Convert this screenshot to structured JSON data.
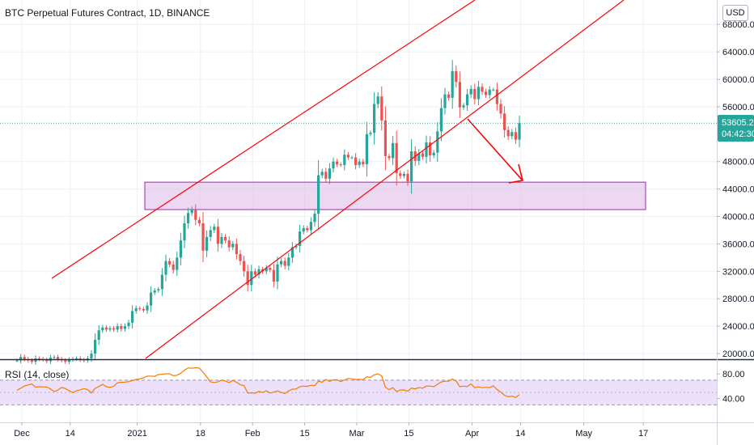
{
  "title": "BTC Perpetual Futures Contract, 1D, BINANCE",
  "currency_button": "USD",
  "price_label": "53605.2",
  "countdown_label": "04:42:30",
  "colors": {
    "up": "#26a69a",
    "down": "#ef5350",
    "channel": "#ff0000",
    "zone_fill": "#e1bee7",
    "zone_border": "#9c27b0",
    "rsi_line": "#f57c00",
    "rsi_band": "#ede0fb",
    "last_price_bg": "#26a69a",
    "grid": "#eef0f4"
  },
  "chart_data": {
    "type": "candlestick",
    "title": "BTC Perpetual Futures Contract, 1D, BINANCE",
    "x_tick_labels": [
      "Dec",
      "14",
      "2021",
      "18",
      "Feb",
      "15",
      "Mar",
      "15",
      "Apr",
      "14",
      "May",
      "17"
    ],
    "x_tick_dates": [
      "2020-12-01",
      "2020-12-14",
      "2021-01-01",
      "2021-01-18",
      "2021-02-01",
      "2021-02-15",
      "2021-03-01",
      "2021-03-15",
      "2021-04-01",
      "2021-04-14",
      "2021-05-01",
      "2021-05-17"
    ],
    "y_tick_labels": [
      "20000.0",
      "24000.0",
      "28000.0",
      "32000.0",
      "36000.0",
      "40000.0",
      "44000.0",
      "48000.0",
      "56000.0",
      "60000.0",
      "64000.0",
      "68000.0"
    ],
    "ylim": [
      19000,
      69000
    ],
    "grid": true,
    "last_price": 53605.2,
    "last_price_countdown": "04:42:30",
    "candles_close": [
      19000,
      19500,
      19200,
      19000,
      18800,
      19300,
      19200,
      19100,
      18900,
      19400,
      19500,
      19200,
      19000,
      18800,
      19100,
      19200,
      19300,
      19100,
      19000,
      19300,
      20000,
      22000,
      23400,
      23800,
      23500,
      23700,
      23500,
      24000,
      23600,
      24000,
      24500,
      26200,
      26600,
      26500,
      26300,
      27000,
      28900,
      29200,
      29400,
      31500,
      33500,
      33000,
      32200,
      34000,
      36500,
      39000,
      40500,
      41000,
      39500,
      39000,
      35000,
      37000,
      38000,
      38500,
      36000,
      37000,
      36500,
      35500,
      36000,
      34500,
      33500,
      32000,
      30000,
      32000,
      31500,
      32300,
      32000,
      32500,
      32200,
      30500,
      33000,
      33500,
      32800,
      34000,
      35500,
      35700,
      37800,
      38300,
      38000,
      39200,
      40400,
      46000,
      46500,
      45500,
      47000,
      48000,
      47600,
      47500,
      49000,
      48600,
      48600,
      47500,
      48000,
      47600,
      52000,
      52200,
      56400,
      57500,
      54000,
      48800,
      48500,
      50700,
      46300,
      45900,
      46200,
      45100,
      49500,
      48100,
      49200,
      48700,
      50800,
      48900,
      49300,
      52400,
      55800,
      57800,
      57300,
      61200,
      59600,
      55900,
      56200,
      57800,
      58600,
      57100,
      58900,
      58200,
      57700,
      58500,
      58500,
      56400,
      55000,
      52600,
      51700,
      52300,
      51200,
      53605
    ]
  },
  "rsi": {
    "label": "RSI (14, close)",
    "y_tick_labels": [
      "80.00",
      "40.00"
    ],
    "ylim": [
      20,
      95
    ],
    "bands": [
      70,
      30
    ],
    "values": [
      53.69,
      56.83,
      60.68,
      62.2,
      63.91,
      58.49,
      59.42,
      58.97,
      58.78,
      55.79,
      51.22,
      54.05,
      58.17,
      56.32,
      53.01,
      49.66,
      52.81,
      54.15,
      56.31,
      54.84,
      49.04,
      56.65,
      59.71,
      63.1,
      59.43,
      58.29,
      60.05,
      65.65,
      66.3,
      66.77,
      67.56,
      69.26,
      71.25,
      72.18,
      73.77,
      76.54,
      76.6,
      76.04,
      79.24,
      79.46,
      80.32,
      80.25,
      77.1,
      77.85,
      81.19,
      86.14,
      89.82,
      89.17,
      90.16,
      89.6,
      82.74,
      74.99,
      67.09,
      65.99,
      67.27,
      70.06,
      68.62,
      65.99,
      69.51,
      66.53,
      62.68,
      61.21,
      49.16,
      49.4,
      48.75,
      51.71,
      50.11,
      52.8,
      49.01,
      50.55,
      52.53,
      49.98,
      48.2,
      52.54,
      55.35,
      55.66,
      59.19,
      60.41,
      59.84,
      61.64,
      60.92,
      68.29,
      66.47,
      71.19,
      68.12,
      70.6,
      70.53,
      67.52,
      70.39,
      72.79,
      72.09,
      70.91,
      71.32,
      70.83,
      75.28,
      74.38,
      78.73,
      80.16,
      76.85,
      58.46,
      54.44,
      57.8,
      51.38,
      53.84,
      54.04,
      51.99,
      57.08,
      55.73,
      58.05,
      56.73,
      60.47,
      60.33,
      59.22,
      63.15,
      67.06,
      68.2,
      68.23,
      71.69,
      68.4,
      59.26,
      60.36,
      59.5,
      63.91,
      57.69,
      59.17,
      57.71,
      58.39,
      57.89,
      60.8,
      54.69,
      50.51,
      45.56,
      43.07,
      44.14,
      41.65,
      46.59
    ]
  }
}
